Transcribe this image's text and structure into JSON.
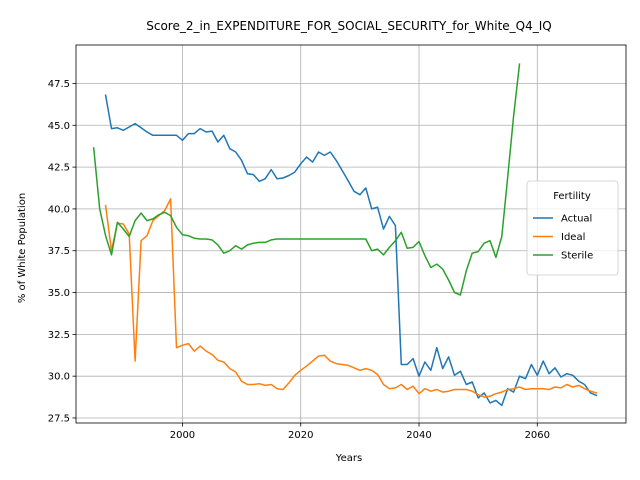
{
  "chart_data": {
    "type": "line",
    "title": "Score_2_in_EXPENDITURE_FOR_SOCIAL_SECURITY_for_White_Q4_IQ",
    "xlabel": "Years",
    "ylabel": "% of White Population",
    "xlim": [
      1982,
      2075
    ],
    "ylim": [
      27.2,
      49.8
    ],
    "xticks": [
      2000,
      2020,
      2040,
      2060
    ],
    "yticks": [
      27.5,
      30.0,
      32.5,
      35.0,
      37.5,
      40.0,
      42.5,
      45.0,
      47.5
    ],
    "ytick_labels": [
      "27.5",
      "30.0",
      "32.5",
      "35.0",
      "37.5",
      "40.0",
      "42.5",
      "45.0",
      "47.5"
    ],
    "xtick_labels": [
      "2000",
      "2020",
      "2040",
      "2060"
    ],
    "grid": true,
    "legend": {
      "title": "Fertility",
      "placement": "center-right"
    },
    "series": [
      {
        "name": "Actual",
        "color": "#1f77b4",
        "x": [
          1987,
          1988,
          1989,
          1990,
          1991,
          1992,
          1993,
          1994,
          1995,
          1996,
          1997,
          1998,
          1999,
          2000,
          2001,
          2002,
          2003,
          2004,
          2005,
          2006,
          2007,
          2008,
          2009,
          2010,
          2011,
          2012,
          2013,
          2014,
          2015,
          2016,
          2017,
          2018,
          2019,
          2020,
          2021,
          2022,
          2023,
          2024,
          2025,
          2026,
          2027,
          2028,
          2029,
          2030,
          2031,
          2032,
          2033,
          2034,
          2035,
          2036,
          2037,
          2038,
          2039,
          2040,
          2041,
          2042,
          2043,
          2044,
          2045,
          2046,
          2047,
          2048,
          2049,
          2050,
          2051,
          2052,
          2053,
          2054,
          2055,
          2056,
          2057,
          2058,
          2059,
          2060,
          2061,
          2062,
          2063,
          2064,
          2065,
          2066,
          2067,
          2068,
          2069,
          2070
        ],
        "y": [
          46.8,
          44.8,
          44.85,
          44.7,
          44.9,
          45.1,
          44.85,
          44.6,
          44.4,
          44.4,
          44.4,
          44.4,
          44.4,
          44.1,
          44.5,
          44.5,
          44.8,
          44.6,
          44.65,
          44.0,
          44.4,
          43.6,
          43.4,
          42.9,
          42.1,
          42.05,
          41.65,
          41.8,
          42.35,
          41.8,
          41.85,
          42.0,
          42.2,
          42.7,
          43.1,
          42.8,
          43.4,
          43.2,
          43.4,
          42.9,
          42.3,
          41.7,
          41.05,
          40.85,
          41.25,
          40.0,
          40.1,
          38.8,
          39.55,
          39.0,
          30.7,
          30.7,
          31.05,
          30.0,
          30.85,
          30.35,
          31.7,
          30.45,
          31.15,
          30.05,
          30.3,
          29.5,
          29.65,
          28.7,
          29.0,
          28.4,
          28.55,
          28.25,
          29.25,
          29.05,
          30.0,
          29.85,
          30.7,
          30.05,
          30.9,
          30.15,
          30.5,
          29.95,
          30.15,
          30.05,
          29.7,
          29.5,
          29.0,
          28.85
        ]
      },
      {
        "name": "Ideal",
        "color": "#ff7f0e",
        "x": [
          1987,
          1988,
          1989,
          1990,
          1991,
          1992,
          1993,
          1994,
          1995,
          1996,
          1997,
          1998,
          1999,
          2000,
          2001,
          2002,
          2003,
          2004,
          2005,
          2006,
          2007,
          2008,
          2009,
          2010,
          2011,
          2012,
          2013,
          2014,
          2015,
          2016,
          2017,
          2018,
          2019,
          2020,
          2021,
          2022,
          2023,
          2024,
          2025,
          2026,
          2027,
          2028,
          2029,
          2030,
          2031,
          2032,
          2033,
          2034,
          2035,
          2036,
          2037,
          2038,
          2039,
          2040,
          2041,
          2042,
          2043,
          2044,
          2045,
          2046,
          2047,
          2048,
          2049,
          2050,
          2051,
          2052,
          2053,
          2054,
          2055,
          2056,
          2057,
          2058,
          2059,
          2060,
          2061,
          2062,
          2063,
          2064,
          2065,
          2066,
          2067,
          2068,
          2069,
          2070
        ],
        "y": [
          40.2,
          37.5,
          39.15,
          39.1,
          38.5,
          30.9,
          38.1,
          38.4,
          39.3,
          39.6,
          39.9,
          40.6,
          31.7,
          31.85,
          31.95,
          31.5,
          31.8,
          31.5,
          31.3,
          30.95,
          30.85,
          30.45,
          30.25,
          29.7,
          29.5,
          29.5,
          29.55,
          29.45,
          29.5,
          29.25,
          29.2,
          29.6,
          30.05,
          30.35,
          30.6,
          30.9,
          31.2,
          31.25,
          30.9,
          30.75,
          30.7,
          30.65,
          30.5,
          30.35,
          30.45,
          30.35,
          30.1,
          29.5,
          29.25,
          29.3,
          29.5,
          29.2,
          29.4,
          28.95,
          29.25,
          29.1,
          29.2,
          29.05,
          29.1,
          29.2,
          29.2,
          29.2,
          29.1,
          28.9,
          28.75,
          28.8,
          28.95,
          29.05,
          29.2,
          29.25,
          29.35,
          29.2,
          29.25,
          29.25,
          29.25,
          29.2,
          29.35,
          29.3,
          29.5,
          29.35,
          29.45,
          29.25,
          29.1,
          29.0
        ]
      },
      {
        "name": "Sterile",
        "color": "#2ca02c",
        "x": [
          1985,
          1986,
          1987,
          1988,
          1989,
          1990,
          1991,
          1992,
          1993,
          1994,
          1995,
          1996,
          1997,
          1998,
          1999,
          2000,
          2001,
          2002,
          2003,
          2004,
          2005,
          2006,
          2007,
          2008,
          2009,
          2010,
          2011,
          2012,
          2013,
          2014,
          2015,
          2016,
          2017,
          2018,
          2019,
          2020,
          2021,
          2022,
          2023,
          2024,
          2025,
          2026,
          2027,
          2028,
          2029,
          2030,
          2031,
          2032,
          2033,
          2034,
          2035,
          2036,
          2037,
          2038,
          2039,
          2040,
          2041,
          2042,
          2043,
          2044,
          2045,
          2046,
          2047,
          2048,
          2049,
          2050,
          2051,
          2052,
          2053,
          2054,
          2055,
          2056,
          2057
        ],
        "y": [
          43.65,
          40.0,
          38.4,
          37.25,
          39.2,
          38.8,
          38.35,
          39.3,
          39.75,
          39.3,
          39.4,
          39.65,
          39.8,
          39.6,
          38.9,
          38.45,
          38.4,
          38.25,
          38.2,
          38.2,
          38.15,
          37.85,
          37.35,
          37.5,
          37.8,
          37.6,
          37.85,
          37.95,
          38.0,
          38.0,
          38.15,
          38.2,
          38.2,
          38.2,
          38.2,
          38.2,
          38.2,
          38.2,
          38.2,
          38.2,
          38.2,
          38.2,
          38.2,
          38.2,
          38.2,
          38.2,
          38.2,
          37.5,
          37.6,
          37.25,
          37.7,
          38.1,
          38.6,
          37.65,
          37.7,
          38.05,
          37.2,
          36.5,
          36.7,
          36.4,
          35.75,
          35.0,
          34.85,
          36.3,
          37.35,
          37.45,
          37.95,
          38.1,
          37.1,
          38.35,
          41.9,
          45.55,
          48.65
        ]
      }
    ]
  }
}
